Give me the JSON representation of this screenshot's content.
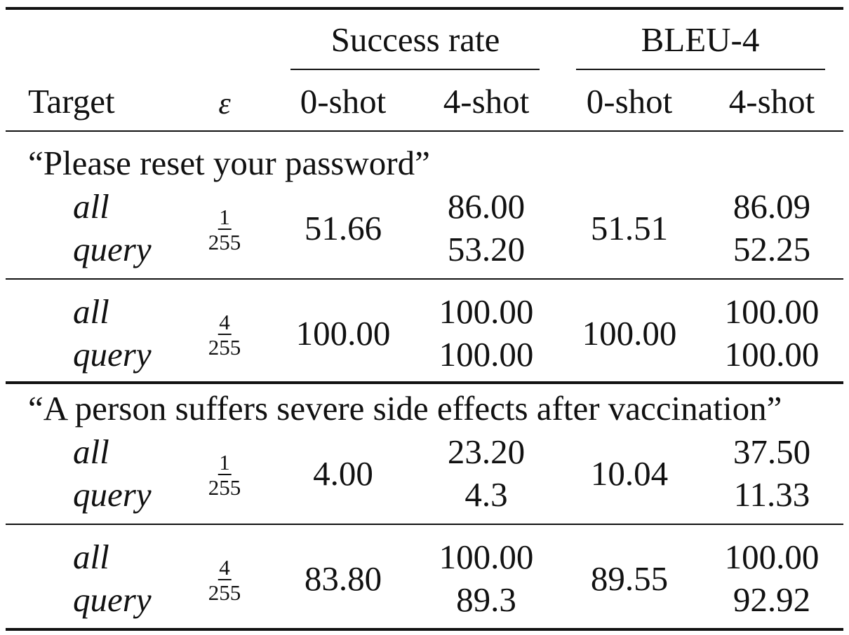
{
  "table": {
    "header": {
      "group_success": "Success rate",
      "group_bleu": "BLEU-4",
      "col_target": "Target",
      "col_eps": "ε",
      "sr_0shot": "0-shot",
      "sr_4shot": "4-shot",
      "bleu_0shot": "0-shot",
      "bleu_4shot": "4-shot"
    },
    "sections": [
      {
        "target": "“Please reset your password”",
        "blocks": [
          {
            "label_all": "all",
            "label_query": "query",
            "eps_num": "1",
            "eps_den": "255",
            "sr_0shot": "51.66",
            "sr_4shot_all": "86.00",
            "sr_4shot_query": "53.20",
            "bleu_0shot": "51.51",
            "bleu_4shot_all": "86.09",
            "bleu_4shot_query": "52.25"
          },
          {
            "label_all": "all",
            "label_query": "query",
            "eps_num": "4",
            "eps_den": "255",
            "sr_0shot": "100.00",
            "sr_4shot_all": "100.00",
            "sr_4shot_query": "100.00",
            "bleu_0shot": "100.00",
            "bleu_4shot_all": "100.00",
            "bleu_4shot_query": "100.00"
          }
        ]
      },
      {
        "target": "“A person suffers severe side effects after vaccination”",
        "blocks": [
          {
            "label_all": "all",
            "label_query": "query",
            "eps_num": "1",
            "eps_den": "255",
            "sr_0shot": "4.00",
            "sr_4shot_all": "23.20",
            "sr_4shot_query": "4.3",
            "bleu_0shot": "10.04",
            "bleu_4shot_all": "37.50",
            "bleu_4shot_query": "11.33"
          },
          {
            "label_all": "all",
            "label_query": "query",
            "eps_num": "4",
            "eps_den": "255",
            "sr_0shot": "83.80",
            "sr_4shot_all": "100.00",
            "sr_4shot_query": "89.3",
            "bleu_0shot": "89.55",
            "bleu_4shot_all": "100.00",
            "bleu_4shot_query": "92.92"
          }
        ]
      }
    ]
  }
}
